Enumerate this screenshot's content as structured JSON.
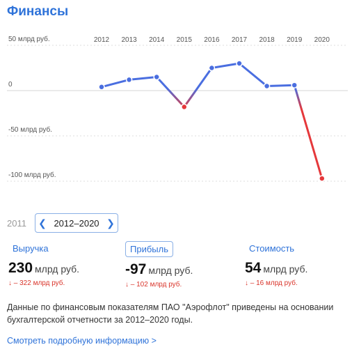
{
  "header": {
    "title": "Финансы"
  },
  "chart_data": {
    "type": "line",
    "x": [
      "2012",
      "2013",
      "2014",
      "2015",
      "2016",
      "2017",
      "2018",
      "2019",
      "2020"
    ],
    "y_ticks": [
      "50 млрд руб.",
      "0",
      "-50 млрд руб.",
      "-100 млрд руб."
    ],
    "values": [
      4,
      12,
      15,
      -18,
      25,
      30,
      5,
      6,
      -97
    ],
    "ylim": [
      -110,
      60
    ],
    "grid": true,
    "colors": {
      "positive": "#4a6ee0",
      "negative": "#e5383b"
    }
  },
  "period": {
    "prev_year": "2011",
    "range_label": "2012–2020"
  },
  "metrics": [
    {
      "label": "Выручка",
      "value": "230",
      "unit": "млрд руб.",
      "delta": "↓ – 322 млрд руб."
    },
    {
      "label": "Прибыль",
      "value": "-97",
      "unit": "млрд руб.",
      "delta": "↓ – 102 млрд руб."
    },
    {
      "label": "Стоимость",
      "value": "54",
      "unit": "млрд руб.",
      "delta": "↓ – 16 млрд руб."
    }
  ],
  "note": "Данные по финансовым показателям ПАО \"Аэрофлот\" приведены на основании бухгалтерской отчетности за 2012–2020 годы.",
  "more_link": "Смотреть подробную информацию  >"
}
